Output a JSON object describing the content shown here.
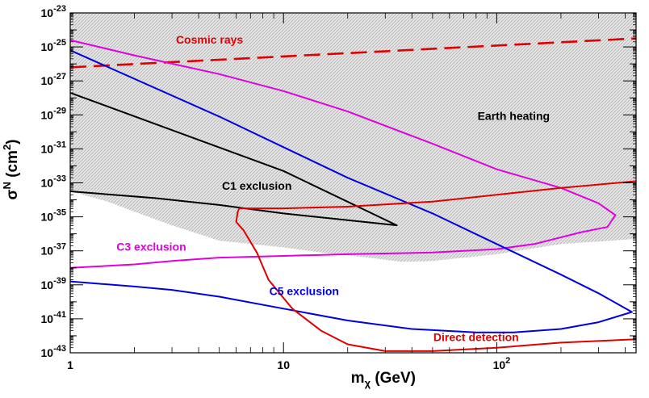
{
  "chart_data": {
    "type": "line",
    "x_scale": "log",
    "y_scale": "log",
    "xlim": [
      1,
      450
    ],
    "ylim": [
      1e-43,
      1e-23
    ],
    "xlabel_parts": [
      "m",
      "χ",
      " (GeV)"
    ],
    "ylabel_parts": [
      "σ",
      "N",
      " (cm",
      "2",
      ")"
    ],
    "x_ticks": [
      {
        "value": 1,
        "base": "1",
        "exp": ""
      },
      {
        "value": 10,
        "base": "10",
        "exp": ""
      },
      {
        "value": 100,
        "base": "10",
        "exp": "2"
      }
    ],
    "y_ticks": [
      {
        "value": -23,
        "base": "10",
        "exp": "-23"
      },
      {
        "value": -25,
        "base": "10",
        "exp": "-25"
      },
      {
        "value": -27,
        "base": "10",
        "exp": "-27"
      },
      {
        "value": -29,
        "base": "10",
        "exp": "-29"
      },
      {
        "value": -31,
        "base": "10",
        "exp": "-31"
      },
      {
        "value": -33,
        "base": "10",
        "exp": "-33"
      },
      {
        "value": -35,
        "base": "10",
        "exp": "-35"
      },
      {
        "value": -37,
        "base": "10",
        "exp": "-37"
      },
      {
        "value": -39,
        "base": "10",
        "exp": "-39"
      },
      {
        "value": -41,
        "base": "10",
        "exp": "-41"
      },
      {
        "value": -43,
        "base": "10",
        "exp": "-43"
      }
    ],
    "regions": [
      {
        "label": "Earth heating",
        "fill": "#d4d4d4",
        "pattern": "hatched",
        "boundary": [
          [
            1,
            -23
          ],
          [
            450,
            -23
          ],
          [
            450,
            -36.3
          ],
          [
            200,
            -36.6
          ],
          [
            100,
            -37.2
          ],
          [
            50,
            -37.6
          ],
          [
            36,
            -37.65
          ],
          [
            25,
            -37.4
          ],
          [
            15,
            -37.1
          ],
          [
            10,
            -36.8
          ],
          [
            5,
            -36.4
          ],
          [
            3,
            -35.5
          ],
          [
            2,
            -34.7
          ],
          [
            1.5,
            -34.1
          ],
          [
            1,
            -33.5
          ]
        ]
      }
    ],
    "series": [
      {
        "label": "Cosmic rays",
        "color": "#e00000",
        "dash": "20,9",
        "points": [
          [
            1,
            -26.2
          ],
          [
            450,
            -24.5
          ]
        ]
      },
      {
        "label": "C1 exclusion",
        "color": "#000000",
        "dash": "",
        "points": [
          [
            1,
            -27.7
          ],
          [
            10,
            -32.3
          ],
          [
            34,
            -35.5
          ],
          [
            10,
            -34.8
          ],
          [
            5,
            -34.3
          ],
          [
            2.5,
            -33.9
          ],
          [
            1,
            -33.5
          ]
        ]
      },
      {
        "label": "C3 exclusion",
        "color": "#e000e0",
        "dash": "",
        "points": [
          [
            1,
            -24.6
          ],
          [
            2,
            -25.5
          ],
          [
            5,
            -26.6
          ],
          [
            10,
            -27.6
          ],
          [
            20,
            -28.8
          ],
          [
            50,
            -30.7
          ],
          [
            100,
            -32.2
          ],
          [
            200,
            -33.3
          ],
          [
            300,
            -34.2
          ],
          [
            360,
            -34.9
          ],
          [
            330,
            -35.6
          ],
          [
            250,
            -35.9
          ],
          [
            150,
            -36.6
          ],
          [
            100,
            -36.9
          ],
          [
            50,
            -37.1
          ],
          [
            20,
            -37.2
          ],
          [
            10,
            -37.3
          ],
          [
            5,
            -37.4
          ],
          [
            3,
            -37.6
          ],
          [
            2,
            -37.8
          ],
          [
            1,
            -38
          ]
        ]
      },
      {
        "label": "C5 exclusion",
        "color": "#0000e0",
        "dash": "",
        "points": [
          [
            1,
            -25.2
          ],
          [
            5,
            -29.1
          ],
          [
            10,
            -30.9
          ],
          [
            20,
            -32.7
          ],
          [
            50,
            -34.8
          ],
          [
            100,
            -36.6
          ],
          [
            200,
            -38.4
          ],
          [
            300,
            -39.5
          ],
          [
            430,
            -40.6
          ],
          [
            300,
            -41.2
          ],
          [
            200,
            -41.6
          ],
          [
            120,
            -41.8
          ],
          [
            80,
            -41.8
          ],
          [
            40,
            -41.6
          ],
          [
            20,
            -41.1
          ],
          [
            10,
            -40.4
          ],
          [
            5,
            -39.7
          ],
          [
            3,
            -39.3
          ],
          [
            2,
            -39.1
          ],
          [
            1,
            -38.8
          ]
        ]
      },
      {
        "label": "Direct detection",
        "color": "#e00000",
        "dash": "",
        "points": [
          [
            450,
            -32.9
          ],
          [
            300,
            -33.1
          ],
          [
            200,
            -33.3
          ],
          [
            100,
            -33.7
          ],
          [
            50,
            -34.1
          ],
          [
            20,
            -34.4
          ],
          [
            10,
            -34.5
          ],
          [
            6.2,
            -34.5
          ],
          [
            6.1,
            -34.7
          ],
          [
            6,
            -35.3
          ],
          [
            6.5,
            -35.8
          ],
          [
            7.5,
            -37.1
          ],
          [
            8.5,
            -38.7
          ],
          [
            11,
            -40.4
          ],
          [
            15,
            -41.7
          ],
          [
            20,
            -42.5
          ],
          [
            30,
            -42.9
          ],
          [
            50,
            -42.9
          ],
          [
            100,
            -42.7
          ],
          [
            200,
            -42.4
          ],
          [
            450,
            -42.2
          ]
        ]
      }
    ],
    "annotations": [
      {
        "text": "Cosmic rays",
        "color": "#e00000",
        "x": 4.5,
        "y": -24.8
      },
      {
        "text": "Earth heating",
        "color": "#000000",
        "x": 120,
        "y": -29.3
      },
      {
        "text": "C1 exclusion",
        "color": "#000000",
        "x": 7.5,
        "y": -33.4
      },
      {
        "text": "C3 exclusion",
        "color": "#e000e0",
        "x": 2.4,
        "y": -37
      },
      {
        "text": "C5 exclusion",
        "color": "#0000e0",
        "x": 12.5,
        "y": -39.6
      },
      {
        "text": "Direct detection",
        "color": "#e00000",
        "x": 80,
        "y": -42.3
      }
    ],
    "grid": false,
    "legend": "none"
  }
}
